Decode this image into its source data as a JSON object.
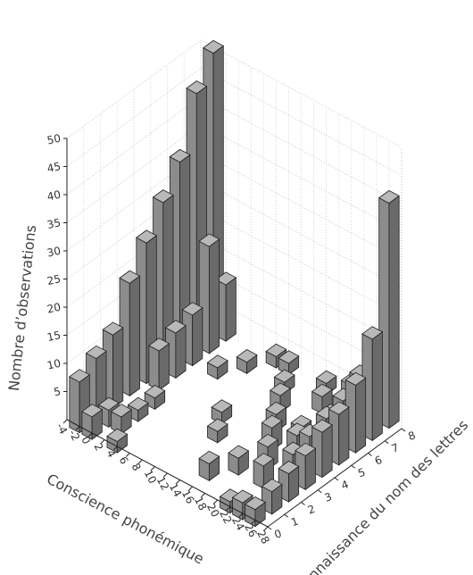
{
  "chart_data": {
    "type": "bar3d",
    "xlabel": "Conscience phonémique",
    "ylabel": "Connaissance du nom des lettres",
    "zlabel": "Nombre d’observations",
    "xlim": [
      -4,
      28
    ],
    "xticks": [
      -4,
      -2,
      0,
      2,
      4,
      6,
      8,
      10,
      12,
      14,
      16,
      18,
      20,
      22,
      24,
      26,
      28
    ],
    "ylim": [
      0,
      8
    ],
    "yticks": [
      0,
      1,
      2,
      3,
      4,
      5,
      6,
      7,
      8
    ],
    "zlim": [
      0,
      50
    ],
    "zticks": [
      5,
      10,
      15,
      20,
      25,
      30,
      35,
      40,
      45,
      50
    ],
    "grid": true,
    "color": "#8c8c8c",
    "bars": [
      {
        "x": -2,
        "y": 0,
        "value": 9
      },
      {
        "x": -2,
        "y": 1,
        "value": 11
      },
      {
        "x": -2,
        "y": 2,
        "value": 13
      },
      {
        "x": -2,
        "y": 3,
        "value": 20
      },
      {
        "x": -2,
        "y": 4,
        "value": 25
      },
      {
        "x": -2,
        "y": 5,
        "value": 30
      },
      {
        "x": -2,
        "y": 6,
        "value": 35
      },
      {
        "x": -2,
        "y": 7,
        "value": 45
      },
      {
        "x": -2,
        "y": 8,
        "value": 50
      },
      {
        "x": 0,
        "y": 0,
        "value": 4
      },
      {
        "x": 0,
        "y": 1,
        "value": 3
      },
      {
        "x": 0,
        "y": 4,
        "value": 7
      },
      {
        "x": 0,
        "y": 5,
        "value": 8
      },
      {
        "x": 0,
        "y": 6,
        "value": 9
      },
      {
        "x": 0,
        "y": 7,
        "value": 19
      },
      {
        "x": 0,
        "y": 8,
        "value": 10
      },
      {
        "x": 2,
        "y": 1,
        "value": 3
      },
      {
        "x": 2,
        "y": 2,
        "value": 2
      },
      {
        "x": 2,
        "y": 3,
        "value": 2
      },
      {
        "x": 4,
        "y": 0,
        "value": 2
      },
      {
        "x": 4,
        "y": 6,
        "value": 2
      },
      {
        "x": 6,
        "y": 7,
        "value": 2
      },
      {
        "x": 8,
        "y": 8,
        "value": 2
      },
      {
        "x": 10,
        "y": 4,
        "value": 2
      },
      {
        "x": 10,
        "y": 8,
        "value": 2
      },
      {
        "x": 12,
        "y": 3,
        "value": 2
      },
      {
        "x": 12,
        "y": 7,
        "value": 2
      },
      {
        "x": 14,
        "y": 6,
        "value": 3
      },
      {
        "x": 16,
        "y": 1,
        "value": 3
      },
      {
        "x": 16,
        "y": 5,
        "value": 3
      },
      {
        "x": 16,
        "y": 8,
        "value": 2
      },
      {
        "x": 18,
        "y": 2,
        "value": 3
      },
      {
        "x": 18,
        "y": 4,
        "value": 4
      },
      {
        "x": 18,
        "y": 7,
        "value": 3
      },
      {
        "x": 20,
        "y": 3,
        "value": 4
      },
      {
        "x": 20,
        "y": 5,
        "value": 3
      },
      {
        "x": 20,
        "y": 8,
        "value": 4
      },
      {
        "x": 22,
        "y": 0,
        "value": 2
      },
      {
        "x": 22,
        "y": 2,
        "value": 4
      },
      {
        "x": 22,
        "y": 4,
        "value": 5
      },
      {
        "x": 22,
        "y": 6,
        "value": 4
      },
      {
        "x": 24,
        "y": 0,
        "value": 3
      },
      {
        "x": 24,
        "y": 3,
        "value": 5
      },
      {
        "x": 24,
        "y": 4,
        "value": 6
      },
      {
        "x": 24,
        "y": 5,
        "value": 7
      },
      {
        "x": 24,
        "y": 6,
        "value": 8
      },
      {
        "x": 24,
        "y": 7,
        "value": 10
      },
      {
        "x": 24,
        "y": 8,
        "value": 6
      },
      {
        "x": 26,
        "y": 0,
        "value": 3
      },
      {
        "x": 26,
        "y": 1,
        "value": 4
      },
      {
        "x": 26,
        "y": 2,
        "value": 5
      },
      {
        "x": 26,
        "y": 3,
        "value": 6
      },
      {
        "x": 26,
        "y": 4,
        "value": 8
      },
      {
        "x": 26,
        "y": 5,
        "value": 9
      },
      {
        "x": 26,
        "y": 6,
        "value": 12
      },
      {
        "x": 26,
        "y": 7,
        "value": 18
      },
      {
        "x": 26,
        "y": 8,
        "value": 40
      }
    ]
  }
}
